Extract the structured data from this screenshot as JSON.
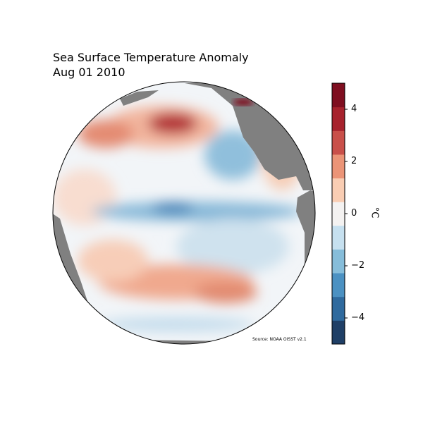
{
  "title": "Sea Surface Temperature Anomaly",
  "subtitle": "Aug 01 2010",
  "source": "Source: NOAA OISST v2.1",
  "colorbar": {
    "label": "°C",
    "min": -5,
    "max": 5,
    "ticks": [
      {
        "value": 4,
        "label": "4"
      },
      {
        "value": 2,
        "label": "2"
      },
      {
        "value": 0,
        "label": "0"
      },
      {
        "value": -2,
        "label": "−2"
      },
      {
        "value": -4,
        "label": "−4"
      }
    ],
    "colormap": [
      "#1f3f66",
      "#2f6a9e",
      "#4b91c2",
      "#86bdda",
      "#c6e0ef",
      "#f4f2f1",
      "#f9cdb3",
      "#eb9477",
      "#c9504a",
      "#a7222d",
      "#7f0e20"
    ]
  },
  "colors": {
    "land": "#808080",
    "warm": "#d6604d",
    "cool": "#4393c3"
  }
}
